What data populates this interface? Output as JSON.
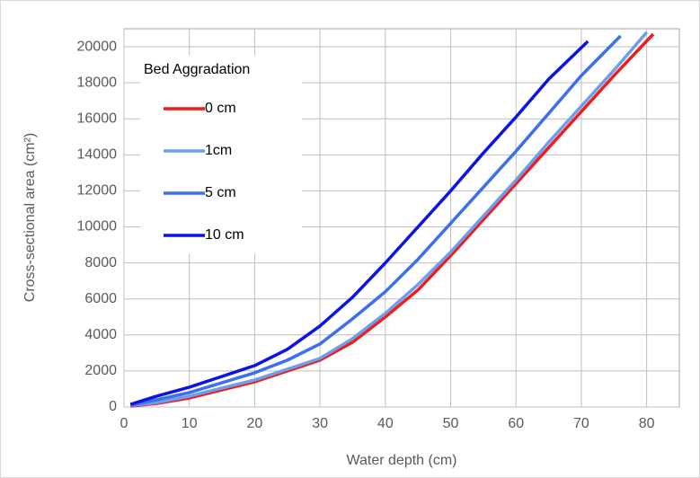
{
  "chart_data": {
    "type": "line",
    "x_label": "Water depth (cm)",
    "y_label": "Cross-sectional area (cm²)",
    "legend_title": "Bed Aggradation",
    "legend": "upper-left",
    "grid": true,
    "xlim": [
      0,
      85
    ],
    "xticks": [
      0,
      10,
      20,
      30,
      40,
      50,
      60,
      70,
      80
    ],
    "ylim": [
      0,
      21000
    ],
    "yticks": [
      0,
      2000,
      4000,
      6000,
      8000,
      10000,
      12000,
      14000,
      16000,
      18000,
      20000
    ],
    "series": [
      {
        "name": "0 cm",
        "color": "#ee1c1c",
        "x": [
          1,
          5,
          10,
          20,
          30,
          35,
          40,
          45,
          50,
          55,
          60,
          65,
          70,
          75,
          81
        ],
        "values": [
          50,
          200,
          500,
          1400,
          2600,
          3600,
          5000,
          6500,
          8400,
          10400,
          12400,
          14400,
          16400,
          18400,
          20700
        ]
      },
      {
        "name": "1cm",
        "color": "#6d9eeb",
        "x": [
          1,
          5,
          10,
          20,
          30,
          35,
          40,
          45,
          50,
          55,
          60,
          65,
          70,
          75,
          80
        ],
        "values": [
          80,
          250,
          600,
          1500,
          2700,
          3800,
          5200,
          6800,
          8600,
          10600,
          12600,
          14700,
          16700,
          18700,
          20800
        ]
      },
      {
        "name": "5 cm",
        "color": "#3c6ef0",
        "x": [
          1,
          5,
          10,
          20,
          25,
          30,
          35,
          40,
          45,
          50,
          55,
          60,
          65,
          70,
          76
        ],
        "values": [
          100,
          400,
          800,
          1900,
          2600,
          3500,
          4900,
          6400,
          8200,
          10200,
          12200,
          14200,
          16300,
          18400,
          20600
        ]
      },
      {
        "name": "10 cm",
        "color": "#0a14e6",
        "x": [
          1,
          5,
          10,
          20,
          25,
          30,
          35,
          40,
          45,
          50,
          55,
          60,
          65,
          71
        ],
        "values": [
          150,
          600,
          1100,
          2300,
          3200,
          4500,
          6100,
          8000,
          10000,
          12000,
          14100,
          16100,
          18200,
          20300
        ]
      }
    ]
  }
}
